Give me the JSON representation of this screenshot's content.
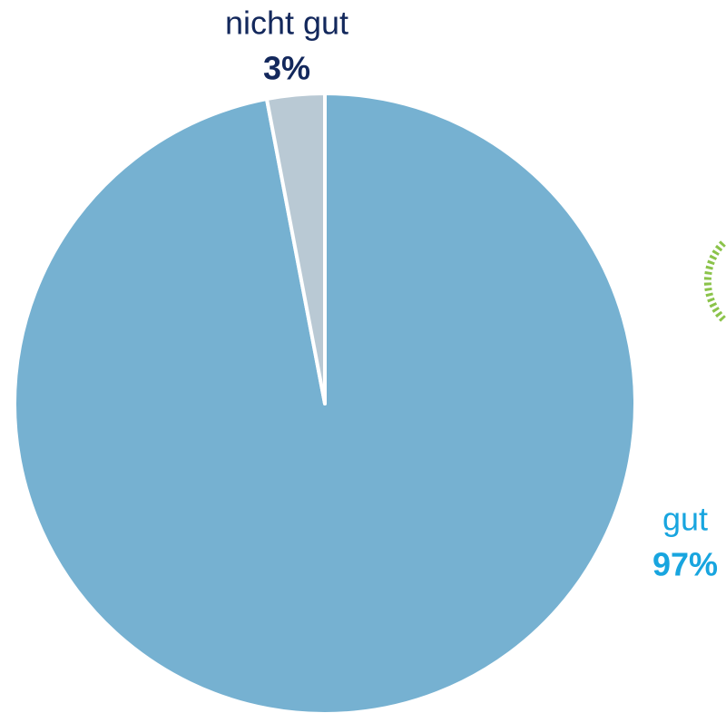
{
  "chart_data": {
    "type": "pie",
    "categories": [
      "gut",
      "nicht gut"
    ],
    "values": [
      97,
      3
    ],
    "value_labels": [
      "97%",
      "3%"
    ],
    "colors": [
      "#76b1d1",
      "#b9c9d4"
    ],
    "label_colors": [
      "#18a5df",
      "#13285c"
    ]
  }
}
